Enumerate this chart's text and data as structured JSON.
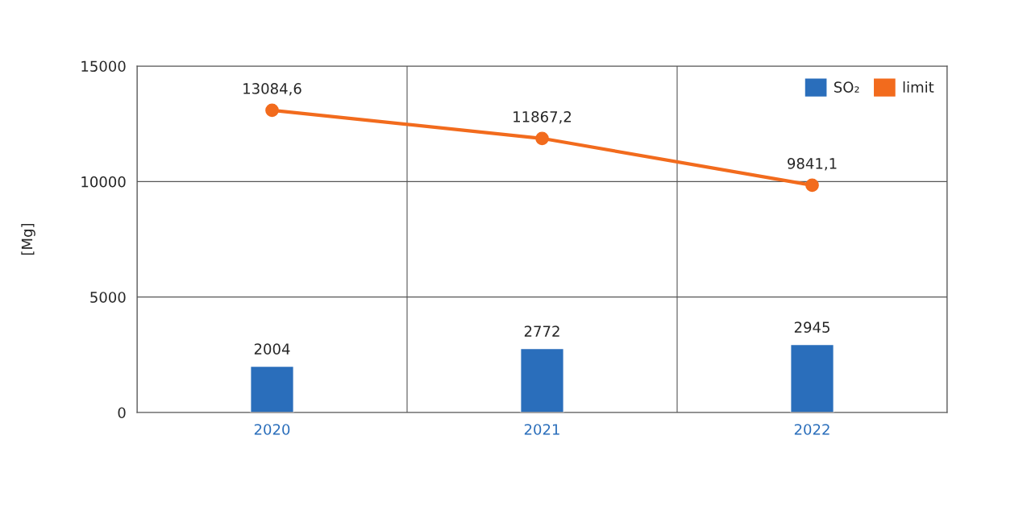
{
  "chart_data": {
    "type": "bar",
    "ylabel": "[Mg]",
    "categories": [
      "2020",
      "2021",
      "2022"
    ],
    "series": [
      {
        "name": "SO₂",
        "color": "#2a6ebb",
        "values": [
          2004,
          2772,
          2945
        ],
        "value_labels": [
          "2004",
          "2772",
          "2945"
        ]
      },
      {
        "name": "limit",
        "type": "line",
        "color": "#f26b1d",
        "marker": "circle",
        "values": [
          13084.6,
          11867.2,
          9841.1
        ],
        "value_labels": [
          "13084,6",
          "11867,2",
          "9841,1"
        ]
      }
    ],
    "ylim": [
      0,
      15000
    ],
    "yticks": [
      0,
      5000,
      10000,
      15000
    ],
    "grid": true,
    "legend": "top right"
  }
}
